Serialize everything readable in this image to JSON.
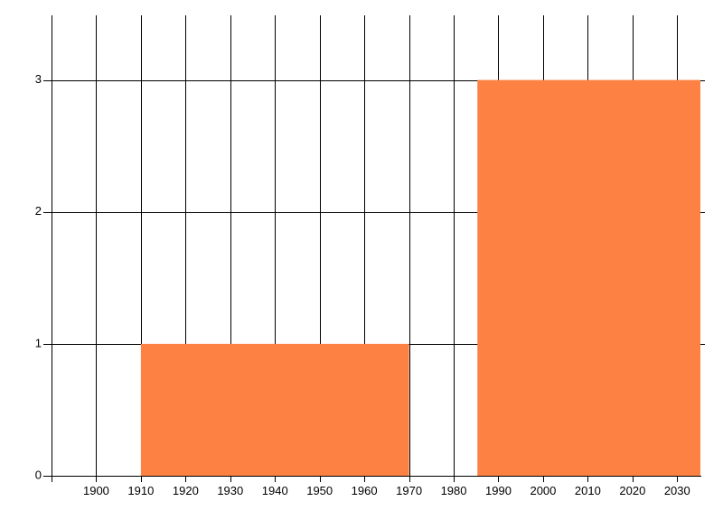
{
  "chart_data": {
    "type": "bar",
    "title": "",
    "xlabel": "",
    "ylabel": "",
    "xlim": [
      1890,
      2035.2
    ],
    "ylim": [
      0,
      3.49
    ],
    "grid": true,
    "legend": false,
    "x_ticks": [
      1890,
      1900,
      1910,
      1920,
      1930,
      1940,
      1950,
      1960,
      1970,
      1980,
      1990,
      2000,
      2010,
      2020,
      2030
    ],
    "x_tick_labels": [
      "",
      "1900",
      "1910",
      "1920",
      "1930",
      "1940",
      "1950",
      "1960",
      "1970",
      "1980",
      "1990",
      "2000",
      "2010",
      "2020",
      "2030"
    ],
    "y_ticks": [
      0,
      1,
      2,
      3
    ],
    "y_tick_labels": [
      "0",
      "1",
      "2",
      "3"
    ],
    "bars": [
      {
        "x_start": 1910,
        "x_end": 1970,
        "value": 1
      },
      {
        "x_start": 1985.3,
        "x_end": 2045.3,
        "value": 3
      }
    ],
    "colors": {
      "bar_fill": "#FD8143",
      "grid_line": "#000000",
      "axis_line": "#000000",
      "tick_text": "#000000",
      "background": "#FFFFFF"
    }
  }
}
